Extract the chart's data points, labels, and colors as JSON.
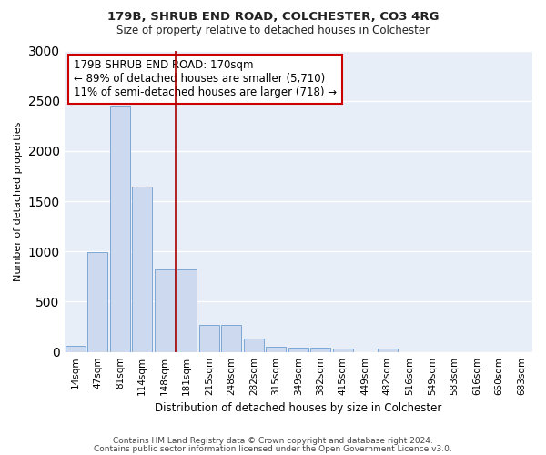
{
  "title": "179B, SHRUB END ROAD, COLCHESTER, CO3 4RG",
  "subtitle": "Size of property relative to detached houses in Colchester",
  "xlabel": "Distribution of detached houses by size in Colchester",
  "ylabel": "Number of detached properties",
  "categories": [
    "14sqm",
    "47sqm",
    "81sqm",
    "114sqm",
    "148sqm",
    "181sqm",
    "215sqm",
    "248sqm",
    "282sqm",
    "315sqm",
    "349sqm",
    "382sqm",
    "415sqm",
    "449sqm",
    "482sqm",
    "516sqm",
    "549sqm",
    "583sqm",
    "616sqm",
    "650sqm",
    "683sqm"
  ],
  "values": [
    60,
    990,
    2440,
    1650,
    820,
    820,
    270,
    270,
    130,
    55,
    45,
    45,
    35,
    0,
    30,
    0,
    0,
    0,
    0,
    0,
    0
  ],
  "bar_color": "#ccd9ef",
  "bar_edge_color": "#7da8d4",
  "vline_color": "#aa0000",
  "annotation_text": "179B SHRUB END ROAD: 170sqm\n← 89% of detached houses are smaller (5,710)\n11% of semi-detached houses are larger (718) →",
  "annotation_box_color": "#ffffff",
  "annotation_box_edge": "#cc0000",
  "background_color": "#ffffff",
  "plot_bg_color": "#e8eef8",
  "grid_color": "#ffffff",
  "ylim": [
    0,
    3000
  ],
  "footer1": "Contains HM Land Registry data © Crown copyright and database right 2024.",
  "footer2": "Contains public sector information licensed under the Open Government Licence v3.0."
}
